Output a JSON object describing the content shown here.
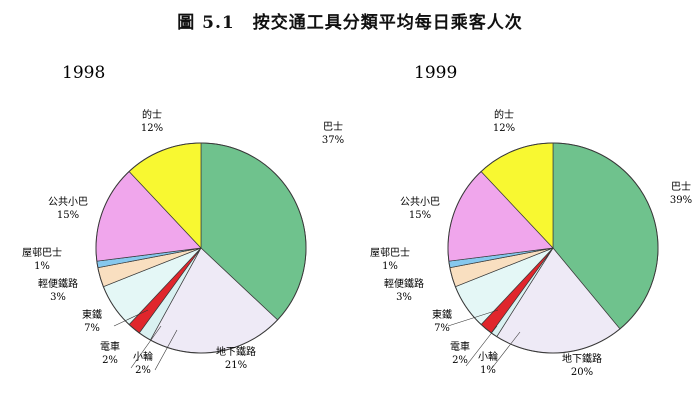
{
  "figure": {
    "title": "圖 5.1　按交通工具分類平均每日乘客人次"
  },
  "colors": {
    "巴士": "#6fc28d",
    "地下鐵路": "#eeeaf6",
    "小輪": "#d9f1f1",
    "電車": "#e0262c",
    "東鐵": "#e4f7f6",
    "輕便鐵路": "#f9dfc0",
    "屋邨巴士": "#86c8ee",
    "公共小巴": "#f0a6ec",
    "的士": "#f8f831"
  },
  "chart_data": [
    {
      "type": "pie",
      "title": "1998",
      "slices": [
        {
          "name": "巴士",
          "value": 37,
          "label": "37%"
        },
        {
          "name": "地下鐵路",
          "value": 21,
          "label": "21%"
        },
        {
          "name": "小輪",
          "value": 2,
          "label": "2%"
        },
        {
          "name": "電車",
          "value": 2,
          "label": "2%"
        },
        {
          "name": "東鐵",
          "value": 7,
          "label": "7%"
        },
        {
          "name": "輕便鐵路",
          "value": 3,
          "label": "3%"
        },
        {
          "name": "屋邨巴士",
          "value": 1,
          "label": "1%"
        },
        {
          "name": "公共小巴",
          "value": 15,
          "label": "15%"
        },
        {
          "name": "的士",
          "value": 12,
          "label": "12%"
        }
      ]
    },
    {
      "type": "pie",
      "title": "1999",
      "slices": [
        {
          "name": "巴士",
          "value": 39,
          "label": "39%"
        },
        {
          "name": "地下鐵路",
          "value": 20,
          "label": "20%"
        },
        {
          "name": "小輪",
          "value": 1,
          "label": "1%"
        },
        {
          "name": "電車",
          "value": 2,
          "label": "2%"
        },
        {
          "name": "東鐵",
          "value": 7,
          "label": "7%"
        },
        {
          "name": "輕便鐵路",
          "value": 3,
          "label": "3%"
        },
        {
          "name": "屋邨巴士",
          "value": 1,
          "label": "1%"
        },
        {
          "name": "公共小巴",
          "value": 15,
          "label": "15%"
        },
        {
          "name": "的士",
          "value": 12,
          "label": "12%"
        }
      ]
    }
  ]
}
